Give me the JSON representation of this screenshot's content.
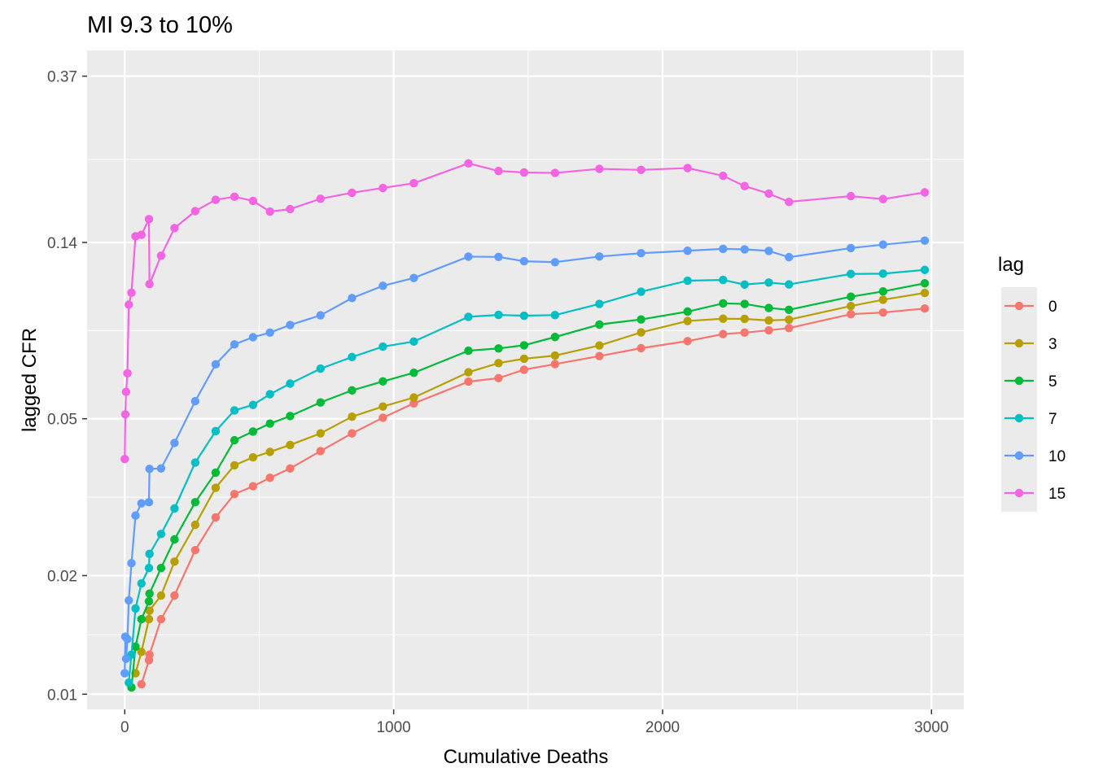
{
  "chart_data": {
    "type": "line",
    "title": "MI 9.3 to 10%",
    "xlabel": "Cumulative Deaths",
    "ylabel": "lagged CFR",
    "xlim": [
      -140,
      3120
    ],
    "ylim": [
      0.00915,
      0.43
    ],
    "y_scale": "log",
    "x_ticks": [
      0,
      1000,
      2000,
      3000
    ],
    "x_tick_labels": [
      "0",
      "1000",
      "2000",
      "3000"
    ],
    "y_ticks": [
      0.01,
      0.02,
      0.05,
      0.14,
      0.37
    ],
    "y_tick_labels": [
      "0.01",
      "0.02",
      "0.05",
      "0.14",
      "0.37"
    ],
    "legend_title": "lag",
    "legend_position": "right",
    "grid": true,
    "series": [
      {
        "name": "0",
        "color": "#F8766D",
        "points": [
          [
            62,
            0.0106
          ],
          [
            90,
            0.0122
          ],
          [
            92,
            0.0126
          ],
          [
            135,
            0.0155
          ],
          [
            185,
            0.0178
          ],
          [
            262,
            0.0232
          ],
          [
            338,
            0.0281
          ],
          [
            408,
            0.0322
          ],
          [
            477,
            0.0337
          ],
          [
            540,
            0.0354
          ],
          [
            615,
            0.0374
          ],
          [
            728,
            0.0414
          ],
          [
            845,
            0.0459
          ],
          [
            960,
            0.0503
          ],
          [
            1075,
            0.0547
          ],
          [
            1278,
            0.0621
          ],
          [
            1390,
            0.0634
          ],
          [
            1485,
            0.0666
          ],
          [
            1600,
            0.0688
          ],
          [
            1765,
            0.0721
          ],
          [
            1920,
            0.0755
          ],
          [
            2093,
            0.0787
          ],
          [
            2225,
            0.082
          ],
          [
            2305,
            0.0827
          ],
          [
            2395,
            0.0838
          ],
          [
            2470,
            0.0849
          ],
          [
            2700,
            0.0921
          ],
          [
            2820,
            0.093
          ],
          [
            2975,
            0.0952
          ]
        ]
      },
      {
        "name": "3",
        "color": "#B79F00",
        "points": [
          [
            40,
            0.0113
          ],
          [
            62,
            0.0128
          ],
          [
            90,
            0.0155
          ],
          [
            92,
            0.0163
          ],
          [
            135,
            0.0178
          ],
          [
            185,
            0.0217
          ],
          [
            262,
            0.0269
          ],
          [
            338,
            0.0334
          ],
          [
            408,
            0.0381
          ],
          [
            477,
            0.0399
          ],
          [
            540,
            0.0412
          ],
          [
            615,
            0.0429
          ],
          [
            728,
            0.0459
          ],
          [
            845,
            0.0506
          ],
          [
            960,
            0.0537
          ],
          [
            1075,
            0.0566
          ],
          [
            1278,
            0.0656
          ],
          [
            1390,
            0.0692
          ],
          [
            1485,
            0.071
          ],
          [
            1600,
            0.0723
          ],
          [
            1765,
            0.0767
          ],
          [
            1920,
            0.0828
          ],
          [
            2093,
            0.0885
          ],
          [
            2225,
            0.0897
          ],
          [
            2305,
            0.0896
          ],
          [
            2395,
            0.0888
          ],
          [
            2470,
            0.0892
          ],
          [
            2700,
            0.0966
          ],
          [
            2820,
            0.1002
          ],
          [
            2975,
            0.1043
          ]
        ]
      },
      {
        "name": "5",
        "color": "#00BA38",
        "points": [
          [
            25,
            0.0104
          ],
          [
            40,
            0.0132
          ],
          [
            62,
            0.0155
          ],
          [
            90,
            0.0172
          ],
          [
            92,
            0.018
          ],
          [
            135,
            0.0209
          ],
          [
            185,
            0.0247
          ],
          [
            262,
            0.0307
          ],
          [
            338,
            0.0365
          ],
          [
            408,
            0.0441
          ],
          [
            477,
            0.0464
          ],
          [
            540,
            0.0486
          ],
          [
            615,
            0.0508
          ],
          [
            728,
            0.055
          ],
          [
            845,
            0.059
          ],
          [
            960,
            0.0622
          ],
          [
            1075,
            0.0654
          ],
          [
            1278,
            0.0744
          ],
          [
            1390,
            0.0754
          ],
          [
            1485,
            0.0768
          ],
          [
            1600,
            0.0806
          ],
          [
            1765,
            0.0867
          ],
          [
            1920,
            0.0893
          ],
          [
            2093,
            0.0935
          ],
          [
            2225,
            0.0981
          ],
          [
            2305,
            0.0978
          ],
          [
            2395,
            0.0955
          ],
          [
            2470,
            0.0945
          ],
          [
            2700,
            0.102
          ],
          [
            2820,
            0.1052
          ],
          [
            2975,
            0.1103
          ]
        ]
      },
      {
        "name": "7",
        "color": "#00BFC4",
        "points": [
          [
            15,
            0.0107
          ],
          [
            25,
            0.0126
          ],
          [
            40,
            0.0165
          ],
          [
            62,
            0.0191
          ],
          [
            90,
            0.0209
          ],
          [
            92,
            0.0227
          ],
          [
            135,
            0.0255
          ],
          [
            185,
            0.0296
          ],
          [
            262,
            0.0387
          ],
          [
            338,
            0.0465
          ],
          [
            408,
            0.0525
          ],
          [
            477,
            0.0542
          ],
          [
            540,
            0.0577
          ],
          [
            615,
            0.0614
          ],
          [
            728,
            0.067
          ],
          [
            845,
            0.0717
          ],
          [
            960,
            0.0762
          ],
          [
            1075,
            0.0785
          ],
          [
            1278,
            0.0907
          ],
          [
            1390,
            0.0917
          ],
          [
            1485,
            0.0913
          ],
          [
            1600,
            0.0916
          ],
          [
            1765,
            0.0978
          ],
          [
            1920,
            0.105
          ],
          [
            2093,
            0.112
          ],
          [
            2225,
            0.1125
          ],
          [
            2305,
            0.1095
          ],
          [
            2395,
            0.1108
          ],
          [
            2470,
            0.1096
          ],
          [
            2700,
            0.1165
          ],
          [
            2820,
            0.1167
          ],
          [
            2975,
            0.1193
          ]
        ]
      },
      {
        "name": "10",
        "color": "#619CFF",
        "points": [
          [
            0,
            0.0113
          ],
          [
            2,
            0.014
          ],
          [
            5,
            0.0123
          ],
          [
            10,
            0.0138
          ],
          [
            15,
            0.0173
          ],
          [
            25,
            0.0215
          ],
          [
            40,
            0.0284
          ],
          [
            62,
            0.0305
          ],
          [
            90,
            0.0307
          ],
          [
            92,
            0.0373
          ],
          [
            135,
            0.0374
          ],
          [
            185,
            0.0434
          ],
          [
            262,
            0.0554
          ],
          [
            338,
            0.0687
          ],
          [
            408,
            0.0772
          ],
          [
            477,
            0.0805
          ],
          [
            540,
            0.0827
          ],
          [
            615,
            0.0865
          ],
          [
            728,
            0.0915
          ],
          [
            845,
            0.1012
          ],
          [
            960,
            0.1087
          ],
          [
            1075,
            0.1138
          ],
          [
            1278,
            0.1289
          ],
          [
            1390,
            0.1287
          ],
          [
            1485,
            0.1255
          ],
          [
            1600,
            0.1248
          ],
          [
            1765,
            0.129
          ],
          [
            1920,
            0.1315
          ],
          [
            2093,
            0.1334
          ],
          [
            2225,
            0.1349
          ],
          [
            2305,
            0.1345
          ],
          [
            2395,
            0.1333
          ],
          [
            2470,
            0.1285
          ],
          [
            2700,
            0.1355
          ],
          [
            2820,
            0.1383
          ],
          [
            2975,
            0.1415
          ]
        ]
      },
      {
        "name": "15",
        "color": "#F564E3",
        "points": [
          [
            0,
            0.0395
          ],
          [
            2,
            0.0513
          ],
          [
            5,
            0.0585
          ],
          [
            10,
            0.0652
          ],
          [
            15,
            0.0974
          ],
          [
            25,
            0.1044
          ],
          [
            40,
            0.1452
          ],
          [
            62,
            0.1465
          ],
          [
            90,
            0.1605
          ],
          [
            92,
            0.1098
          ],
          [
            135,
            0.1296
          ],
          [
            185,
            0.1523
          ],
          [
            262,
            0.1681
          ],
          [
            338,
            0.1797
          ],
          [
            408,
            0.1829
          ],
          [
            477,
            0.1785
          ],
          [
            540,
            0.1677
          ],
          [
            615,
            0.1702
          ],
          [
            728,
            0.1808
          ],
          [
            845,
            0.1872
          ],
          [
            960,
            0.1925
          ],
          [
            1075,
            0.198
          ],
          [
            1278,
            0.2223
          ],
          [
            1390,
            0.2126
          ],
          [
            1485,
            0.2108
          ],
          [
            1600,
            0.2102
          ],
          [
            1765,
            0.2153
          ],
          [
            1920,
            0.214
          ],
          [
            2093,
            0.2163
          ],
          [
            2225,
            0.2067
          ],
          [
            2305,
            0.1947
          ],
          [
            2395,
            0.1863
          ],
          [
            2470,
            0.1775
          ],
          [
            2700,
            0.1836
          ],
          [
            2820,
            0.1804
          ],
          [
            2975,
            0.1876
          ]
        ]
      }
    ]
  }
}
